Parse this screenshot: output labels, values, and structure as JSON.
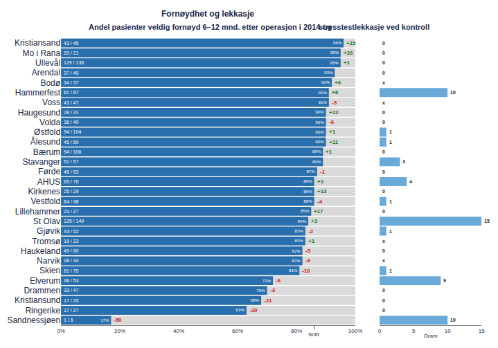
{
  "chart_data": [
    {
      "type": "bar",
      "orientation": "horizontal",
      "title": "Fornøydhet og lekkasje",
      "subtitle": "Andel pasienter veldig fornøyd 6–12 mnd. etter operasjon i 2014 og",
      "categories": [
        "Kristiansand",
        "Mo i Rana",
        "Ullevål",
        "Arendal",
        "Bodø",
        "Hammerfest",
        "Voss",
        "Haugesund",
        "Volda",
        "Østfold",
        "Ålesund",
        "Bærum",
        "Stavanger",
        "Førde",
        "AHUS",
        "Kirkenes",
        "Vestfold",
        "Lillehammer",
        "St Olav",
        "Gjøvik",
        "Tromsø",
        "Haukeland",
        "Narvik",
        "Skien",
        "Elverum",
        "Drammen",
        "Kristiansund",
        "Ringerike",
        "Sandnessjøen"
      ],
      "values": [
        96,
        95,
        95,
        93,
        92,
        91,
        91,
        90,
        90,
        90,
        90,
        89,
        89,
        87,
        86,
        86,
        86,
        85,
        84,
        83,
        83,
        82,
        82,
        81,
        72,
        70,
        68,
        63,
        17
      ],
      "value_labels": [
        "96%",
        "95%",
        "95%",
        "93%",
        "92%",
        "91%",
        "91%",
        "90%",
        "90%",
        "90%",
        "90%",
        "89%",
        "89%",
        "87%",
        "86%",
        "86%",
        "86%",
        "85%",
        "84%",
        "83%",
        "83%",
        "82%",
        "82%",
        "81%",
        "72%",
        "70%",
        "68%",
        "63%",
        "17%"
      ],
      "counts": [
        "43 / 45",
        "20 / 21",
        "129 / 136",
        "37 / 40",
        "34 / 37",
        "61 / 67",
        "43 / 47",
        "28 / 31",
        "36 / 40",
        "94 / 104",
        "45 / 50",
        "94 / 106",
        "51 / 57",
        "46 / 53",
        "65 / 76",
        "25 / 29",
        "84 / 98",
        "23 / 27",
        "125 / 149",
        "43 / 52",
        "19 / 23",
        "49 / 60",
        "28 / 34",
        "61 / 75",
        "38 / 53",
        "33 / 47",
        "17 / 25",
        "17 / 27",
        "1 / 6"
      ],
      "changes": [
        15,
        26,
        1,
        null,
        6,
        8,
        -9,
        12,
        -6,
        1,
        11,
        1,
        null,
        -1,
        1,
        13,
        -4,
        17,
        3,
        -2,
        1,
        -5,
        -6,
        -10,
        -6,
        -3,
        -21,
        -20,
        -50
      ],
      "change_labels": [
        "+15",
        "+26",
        "+1",
        null,
        "+6",
        "+8",
        "-9",
        "+12",
        "-6",
        "+1",
        "+11",
        "+1",
        null,
        "-1",
        "+1",
        "+13",
        "-4",
        "+17",
        "+3",
        "-2",
        "+1",
        "-5",
        "-6",
        "-10",
        "-6",
        "-3",
        "-21",
        "-20",
        "-50"
      ],
      "reference": {
        "value": 86,
        "label": "Snitt"
      },
      "color": "#2a6fad",
      "xlim": [
        0,
        100
      ],
      "xticks": [
        {
          "value": 0,
          "label": "0%"
        },
        {
          "value": 20,
          "label": "20%"
        },
        {
          "value": 40,
          "label": "40%"
        },
        {
          "value": 60,
          "label": "60%"
        },
        {
          "value": 80,
          "label": "80%"
        },
        {
          "value": 100,
          "label": "100%"
        }
      ],
      "grid": false,
      "data_labels": true
    },
    {
      "type": "bar",
      "orientation": "horizontal",
      "title": "stresstestlekkasje ved kontroll",
      "x_label": "Gram",
      "values": [
        0,
        0,
        0,
        0,
        null,
        10,
        null,
        0,
        0,
        1,
        1,
        0,
        3,
        0,
        4,
        0,
        1,
        0,
        15,
        1,
        null,
        0,
        null,
        1,
        9,
        0,
        0,
        0,
        10
      ],
      "value_labels": [
        "0",
        "0",
        "0",
        "0",
        "x",
        "10",
        "x",
        "0",
        "0",
        "1",
        "1",
        "0",
        "3",
        "0",
        "4",
        "0",
        "1",
        "0",
        "15",
        "1",
        "x",
        "0",
        "x",
        "1",
        "9",
        "0",
        "0",
        "0",
        "10"
      ],
      "color": "#6aaad8",
      "xlim": [
        0,
        15
      ],
      "xticks": [
        0,
        5,
        10,
        15
      ],
      "grid": false,
      "data_labels": true
    }
  ]
}
